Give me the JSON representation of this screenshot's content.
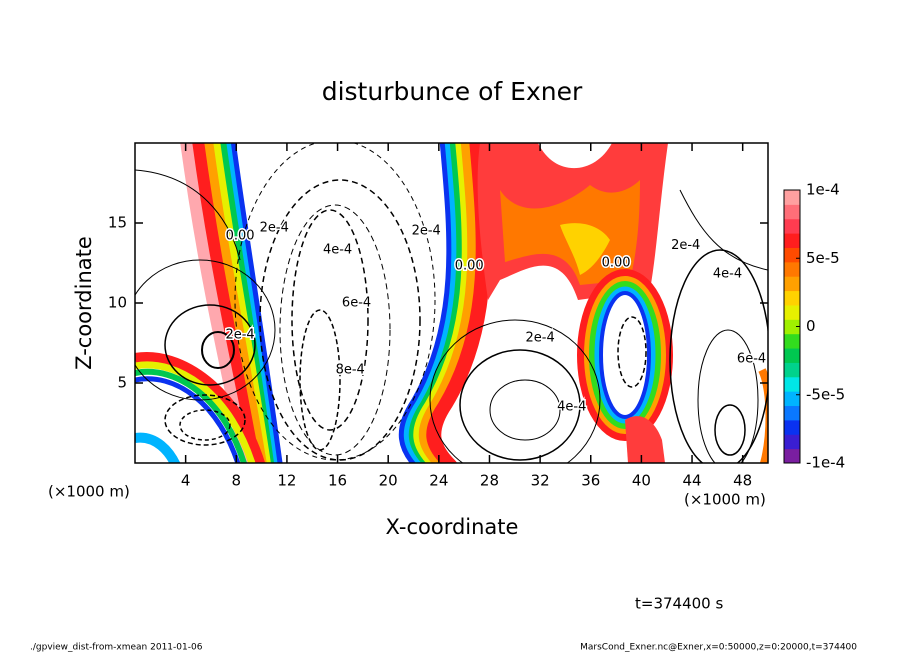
{
  "chart_data": {
    "type": "contour",
    "title": "disturbunce of Exner",
    "x_label": "X-coordinate",
    "y_label": "Z-coordinate",
    "x_unit": "(×1000 m)",
    "y_unit": "(×1000 m)",
    "xlim": [
      0,
      50
    ],
    "ylim": [
      0,
      20
    ],
    "xticks": [
      4,
      8,
      12,
      16,
      20,
      24,
      28,
      32,
      36,
      40,
      44,
      48
    ],
    "yticks": [
      5,
      10,
      15
    ],
    "colorbar": {
      "lim": [
        -0.0001,
        0.0001
      ],
      "ticks": [
        {
          "value": 0.0001,
          "label": "1e-4"
        },
        {
          "value": 5e-05,
          "label": "5e-5"
        },
        0,
        {
          "value": -5e-05,
          "label": "-5e-5"
        },
        {
          "value": -0.0001,
          "label": "-1e-4"
        }
      ],
      "colors": [
        "#7a1ea0",
        "#3a1ed2",
        "#0a32f0",
        "#0a78ff",
        "#00b4ff",
        "#00e6e6",
        "#00d28c",
        "#00c850",
        "#32dc1e",
        "#a0f000",
        "#e6f000",
        "#ffd200",
        "#ffa000",
        "#ff7800",
        "#ff4b00",
        "#ff1e1e",
        "#ff3c50",
        "#ff6e78",
        "#ffa0a0"
      ]
    },
    "annotations": [
      {
        "text": "0.00",
        "x": 8.3,
        "z": 14.2
      },
      {
        "text": "2e-4",
        "x": 11,
        "z": 14.7
      },
      {
        "text": "4e-4",
        "x": 16,
        "z": 13.3
      },
      {
        "text": "6e-4",
        "x": 17.5,
        "z": 10
      },
      {
        "text": "8e-4",
        "x": 17,
        "z": 5.8
      },
      {
        "text": "2e-4",
        "x": 8.3,
        "z": 8
      },
      {
        "text": "2e-4",
        "x": 23,
        "z": 14.5
      },
      {
        "text": "0.00",
        "x": 26.4,
        "z": 12.3
      },
      {
        "text": "2e-4",
        "x": 32,
        "z": 7.8
      },
      {
        "text": "4e-4",
        "x": 34.5,
        "z": 3.5
      },
      {
        "text": "0.00",
        "x": 38,
        "z": 12.5
      },
      {
        "text": "2e-4",
        "x": 43.5,
        "z": 13.6
      },
      {
        "text": "4e-4",
        "x": 46.8,
        "z": 11.8
      },
      {
        "text": "6e-4",
        "x": 48.7,
        "z": 6.5
      }
    ],
    "time_label": "t=374400 s",
    "footer_left": "./gpview_dist-from-xmean  2011-01-06",
    "footer_right": "MarsCond_Exner.nc@Exner,x=0:50000,z=0:20000,t=374400"
  }
}
